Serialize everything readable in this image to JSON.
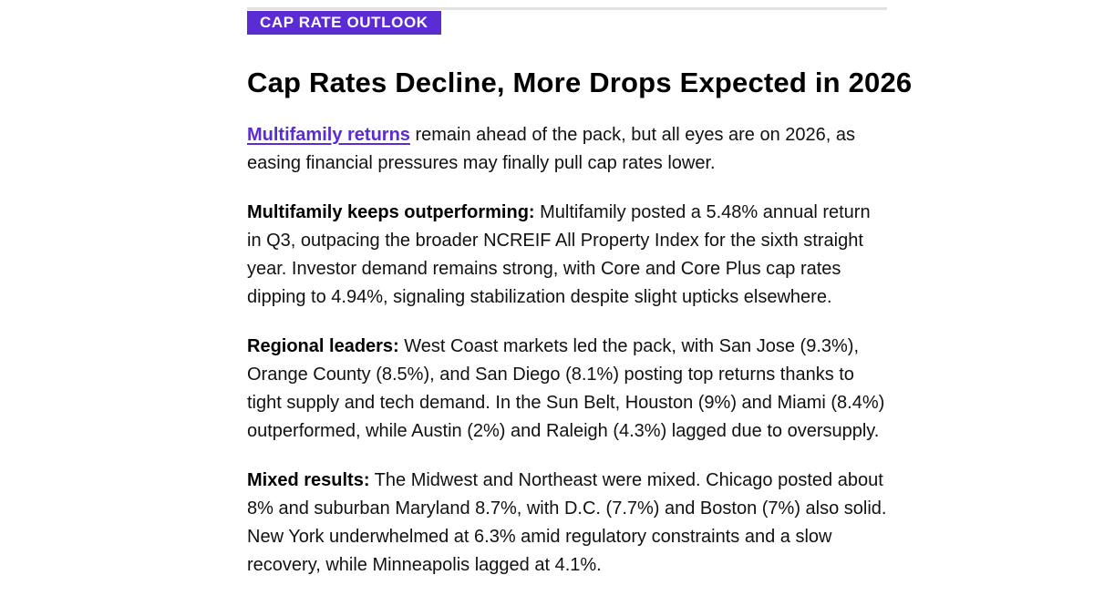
{
  "section_tag": "CAP RATE OUTLOOK",
  "headline": "Cap Rates Decline, More Drops Expected in 2026",
  "intro": {
    "link_text": "Multifamily returns",
    "text": " remain ahead of the pack, but all eyes are on 2026, as easing financial pressures may finally pull cap rates lower."
  },
  "paragraphs": [
    {
      "label": "Multifamily keeps outperforming:",
      "text": " Multifamily posted a 5.48% annual return in Q3, outpacing the broader NCREIF All Property Index for the sixth straight year. Investor demand remains strong, with Core and Core Plus cap rates dipping to 4.94%, signaling stabilization despite slight upticks elsewhere."
    },
    {
      "label": "Regional leaders:",
      "text": " West Coast markets led the pack, with San Jose (9.3%), Orange County (8.5%), and San Diego (8.1%) posting top returns thanks to tight supply and tech demand. In the Sun Belt, Houston (9%) and Miami (8.4%) outperformed, while Austin (2%) and Raleigh (4.3%) lagged due to oversupply."
    },
    {
      "label": "Mixed results:",
      "text": " The Midwest and Northeast were mixed. Chicago posted about 8% and suburban Maryland 8.7%, with D.C. (7.7%) and Boston (7%) also solid. New York underwhelmed at 6.3% amid regulatory constraints and a slow recovery, while Minneapolis lagged at 4.1%."
    }
  ],
  "colors": {
    "accent": "#5b2bd3",
    "text": "#111111",
    "rule": "#e2e2e2"
  }
}
